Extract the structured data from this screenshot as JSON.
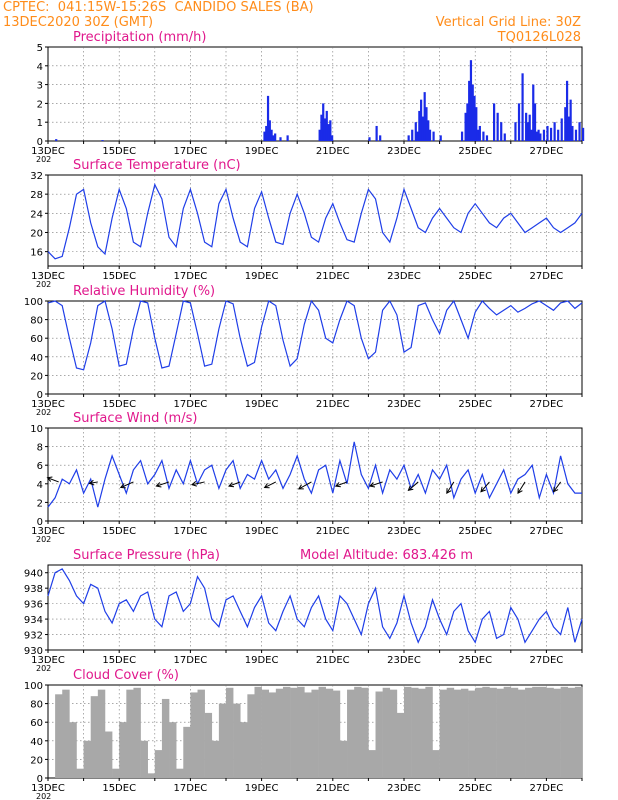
{
  "header": {
    "line1": "CPTEC:  041:15W-15:26S  CANDIDO SALES (BA)",
    "line2": "13DEC2020 30Z (GMT)",
    "grid_note": "Vertical Grid Line: 30Z",
    "run_id": "TQ0126L028"
  },
  "x_ticks": [
    "13DEC",
    "15DEC",
    "17DEC",
    "19DEC",
    "21DEC",
    "23DEC",
    "25DEC",
    "27DEC"
  ],
  "x_sub": "202",
  "chart_data": [
    {
      "id": "precip",
      "type": "bar",
      "title": "Precipitation (mm/h)",
      "ylim": [
        0,
        5
      ],
      "yticks": [
        0,
        1,
        2,
        3,
        4,
        5
      ],
      "x_range_days": [
        13,
        28
      ],
      "grid": true,
      "series": [
        {
          "x": [
            13.2,
            14.5,
            19.05,
            19.1,
            19.15,
            19.2,
            19.25,
            19.3,
            19.35,
            19.5,
            19.7,
            20.6,
            20.65,
            20.7,
            20.75,
            20.8,
            20.85,
            20.9,
            20.95,
            22.0,
            22.2,
            22.3,
            23.1,
            23.2,
            23.3,
            23.35,
            23.4,
            23.45,
            23.5,
            23.55,
            23.6,
            23.65,
            23.7,
            23.8,
            24.0,
            24.6,
            24.7,
            24.75,
            24.8,
            24.85,
            24.9,
            24.95,
            25.0,
            25.05,
            25.1,
            25.2,
            25.3,
            25.5,
            25.6,
            25.7,
            25.8,
            26.1,
            26.2,
            26.3,
            26.4,
            26.45,
            26.5,
            26.55,
            26.6,
            26.65,
            26.7,
            26.75,
            26.8,
            26.9,
            27.0,
            27.1,
            27.2,
            27.3,
            27.4,
            27.5,
            27.55,
            27.6,
            27.65,
            27.7,
            27.8,
            27.9,
            28.0
          ],
          "values": [
            0.1,
            0.05,
            0.5,
            0.8,
            2.4,
            1.1,
            0.6,
            0.3,
            0.4,
            0.2,
            0.3,
            0.6,
            1.4,
            2.0,
            1.2,
            1.6,
            0.9,
            1.1,
            0.3,
            0.2,
            0.8,
            0.3,
            0.3,
            0.6,
            1.0,
            0.5,
            1.6,
            2.2,
            1.3,
            2.6,
            1.8,
            1.1,
            0.6,
            0.5,
            0.3,
            0.5,
            1.5,
            2.0,
            3.2,
            4.3,
            3.0,
            2.4,
            1.8,
            0.6,
            0.8,
            0.5,
            0.3,
            2.0,
            1.5,
            1.0,
            0.4,
            1.0,
            2.0,
            3.6,
            1.5,
            1.0,
            1.4,
            0.6,
            3.0,
            2.0,
            0.5,
            0.6,
            0.4,
            0.6,
            0.8,
            0.7,
            1.0,
            0.6,
            1.2,
            1.8,
            3.2,
            1.3,
            2.2,
            0.8,
            0.6,
            1.0,
            0.7
          ]
        }
      ]
    },
    {
      "id": "temp",
      "type": "line",
      "title": "Surface Temperature (nC)",
      "ylim": [
        13,
        32
      ],
      "yticks": [
        16,
        20,
        24,
        28,
        32
      ],
      "x_range_days": [
        13,
        28
      ],
      "grid": true,
      "series": [
        {
          "x": [
            13.0,
            13.2,
            13.4,
            13.6,
            13.8,
            14.0,
            14.2,
            14.4,
            14.6,
            14.8,
            15.0,
            15.2,
            15.4,
            15.6,
            15.8,
            16.0,
            16.2,
            16.4,
            16.6,
            16.8,
            17.0,
            17.2,
            17.4,
            17.6,
            17.8,
            18.0,
            18.2,
            18.4,
            18.6,
            18.8,
            19.0,
            19.2,
            19.4,
            19.6,
            19.8,
            20.0,
            20.2,
            20.4,
            20.6,
            20.8,
            21.0,
            21.2,
            21.4,
            21.6,
            21.8,
            22.0,
            22.2,
            22.4,
            22.6,
            22.8,
            23.0,
            23.2,
            23.4,
            23.6,
            23.8,
            24.0,
            24.2,
            24.4,
            24.6,
            24.8,
            25.0,
            25.2,
            25.4,
            25.6,
            25.8,
            26.0,
            26.2,
            26.4,
            26.6,
            26.8,
            27.0,
            27.2,
            27.4,
            27.6,
            27.8,
            28.0
          ],
          "values": [
            16,
            14.5,
            15,
            21,
            28,
            29,
            22,
            17,
            15.5,
            23,
            29,
            25,
            18,
            17,
            24,
            30,
            27,
            19,
            17,
            25,
            29,
            24,
            18,
            17,
            26,
            29,
            23,
            18,
            17,
            25,
            28.5,
            23,
            18,
            17.5,
            24,
            28,
            24,
            19,
            18,
            23,
            26,
            22,
            18.5,
            18,
            24,
            29,
            27,
            20,
            18,
            23,
            29,
            25,
            21,
            20,
            23,
            25,
            23,
            21,
            20,
            24,
            26,
            24,
            22,
            21,
            23,
            24,
            22,
            20,
            21,
            22,
            23,
            21,
            20,
            21,
            22,
            24
          ]
        }
      ]
    },
    {
      "id": "rh",
      "type": "line",
      "title": "Relative Humidity (%)",
      "ylim": [
        0,
        100
      ],
      "yticks": [
        0,
        20,
        40,
        60,
        80,
        100
      ],
      "x_range_days": [
        13,
        28
      ],
      "grid": true,
      "series": [
        {
          "x": [
            13.0,
            13.2,
            13.4,
            13.6,
            13.8,
            14.0,
            14.2,
            14.4,
            14.6,
            14.8,
            15.0,
            15.2,
            15.4,
            15.6,
            15.8,
            16.0,
            16.2,
            16.4,
            16.6,
            16.8,
            17.0,
            17.2,
            17.4,
            17.6,
            17.8,
            18.0,
            18.2,
            18.4,
            18.6,
            18.8,
            19.0,
            19.2,
            19.4,
            19.6,
            19.8,
            20.0,
            20.2,
            20.4,
            20.6,
            20.8,
            21.0,
            21.2,
            21.4,
            21.6,
            21.8,
            22.0,
            22.2,
            22.4,
            22.6,
            22.8,
            23.0,
            23.2,
            23.4,
            23.6,
            23.8,
            24.0,
            24.2,
            24.4,
            24.6,
            24.8,
            25.0,
            25.2,
            25.4,
            25.6,
            25.8,
            26.0,
            26.2,
            26.4,
            26.6,
            26.8,
            27.0,
            27.2,
            27.4,
            27.6,
            27.8,
            28.0
          ],
          "values": [
            98,
            100,
            95,
            60,
            28,
            26,
            55,
            95,
            100,
            70,
            30,
            32,
            70,
            100,
            98,
            60,
            28,
            30,
            65,
            100,
            98,
            65,
            30,
            32,
            70,
            100,
            97,
            60,
            30,
            34,
            72,
            100,
            95,
            58,
            30,
            38,
            75,
            100,
            90,
            60,
            55,
            80,
            100,
            95,
            60,
            38,
            45,
            90,
            100,
            85,
            45,
            50,
            95,
            98,
            80,
            65,
            90,
            100,
            80,
            60,
            88,
            100,
            92,
            85,
            90,
            95,
            88,
            92,
            97,
            100,
            95,
            90,
            98,
            100,
            92,
            98
          ]
        }
      ]
    },
    {
      "id": "wind",
      "type": "line",
      "title": "Surface Wind (m/s)",
      "ylim": [
        0,
        10
      ],
      "yticks": [
        0,
        2,
        4,
        6,
        8,
        10
      ],
      "x_range_days": [
        13,
        28
      ],
      "grid": true,
      "series": [
        {
          "x": [
            13.0,
            13.2,
            13.4,
            13.6,
            13.8,
            14.0,
            14.2,
            14.4,
            14.6,
            14.8,
            15.0,
            15.2,
            15.4,
            15.6,
            15.8,
            16.0,
            16.2,
            16.4,
            16.6,
            16.8,
            17.0,
            17.2,
            17.4,
            17.6,
            17.8,
            18.0,
            18.2,
            18.4,
            18.6,
            18.8,
            19.0,
            19.2,
            19.4,
            19.6,
            19.8,
            20.0,
            20.2,
            20.4,
            20.6,
            20.8,
            21.0,
            21.2,
            21.4,
            21.6,
            21.8,
            22.0,
            22.2,
            22.4,
            22.6,
            22.8,
            23.0,
            23.2,
            23.4,
            23.6,
            23.8,
            24.0,
            24.2,
            24.4,
            24.6,
            24.8,
            25.0,
            25.2,
            25.4,
            25.6,
            25.8,
            26.0,
            26.2,
            26.4,
            26.6,
            26.8,
            27.0,
            27.2,
            27.4,
            27.6,
            27.8,
            28.0
          ],
          "values": [
            1.5,
            2.5,
            4.5,
            4.0,
            5.5,
            3.0,
            4.5,
            1.5,
            4.5,
            7.0,
            5.0,
            3.0,
            5.5,
            6.5,
            4.0,
            5.0,
            6.5,
            3.5,
            5.5,
            4.0,
            6.5,
            4.0,
            5.5,
            6.0,
            3.5,
            5.5,
            6.5,
            3.5,
            5.0,
            4.5,
            6.5,
            4.5,
            5.5,
            3.5,
            5.0,
            7.0,
            4.5,
            3.0,
            5.5,
            6.0,
            3.0,
            6.5,
            4.0,
            8.5,
            5.0,
            3.5,
            6.0,
            3.0,
            5.5,
            4.5,
            6.0,
            3.5,
            5.0,
            3.0,
            5.5,
            4.5,
            6.0,
            2.5,
            4.5,
            5.5,
            3.0,
            5.0,
            2.5,
            4.0,
            5.5,
            3.0,
            4.5,
            5.0,
            6.0,
            2.5,
            5.0,
            3.0,
            7.0,
            4.0,
            3.0,
            3.0
          ]
        },
        {
          "name": "",
          "x": [
            13.3,
            14.4,
            15.4,
            16.4,
            17.4,
            18.4,
            19.4,
            20.4,
            21.4,
            22.4,
            23.4,
            24.4,
            25.4,
            26.4,
            27.4
          ],
          "dir_dx": [
            -0.8,
            -0.6,
            -0.9,
            -0.9,
            -0.9,
            -0.8,
            -0.8,
            -0.9,
            -0.8,
            -0.9,
            -0.7,
            -0.5,
            -0.6,
            -0.5,
            -0.5
          ],
          "dir_dy": [
            -0.3,
            0.1,
            0.4,
            0.3,
            0.2,
            0.3,
            0.4,
            0.5,
            0.3,
            0.3,
            0.6,
            0.8,
            0.7,
            0.8,
            0.7
          ]
        }
      ]
    },
    {
      "id": "pres",
      "type": "line",
      "title": "Surface Pressure (hPa)",
      "subtitle": "Model Altitude: 683.426 m",
      "ylim": [
        930,
        941
      ],
      "yticks": [
        930,
        932,
        934,
        936,
        938,
        940
      ],
      "x_range_days": [
        13,
        28
      ],
      "grid": true,
      "series": [
        {
          "x": [
            13.0,
            13.2,
            13.4,
            13.6,
            13.8,
            14.0,
            14.2,
            14.4,
            14.6,
            14.8,
            15.0,
            15.2,
            15.4,
            15.6,
            15.8,
            16.0,
            16.2,
            16.4,
            16.6,
            16.8,
            17.0,
            17.2,
            17.4,
            17.6,
            17.8,
            18.0,
            18.2,
            18.4,
            18.6,
            18.8,
            19.0,
            19.2,
            19.4,
            19.6,
            19.8,
            20.0,
            20.2,
            20.4,
            20.6,
            20.8,
            21.0,
            21.2,
            21.4,
            21.6,
            21.8,
            22.0,
            22.2,
            22.4,
            22.6,
            22.8,
            23.0,
            23.2,
            23.4,
            23.6,
            23.8,
            24.0,
            24.2,
            24.4,
            24.6,
            24.8,
            25.0,
            25.2,
            25.4,
            25.6,
            25.8,
            26.0,
            26.2,
            26.4,
            26.6,
            26.8,
            27.0,
            27.2,
            27.4,
            27.6,
            27.8,
            28.0
          ],
          "values": [
            937,
            940,
            940.5,
            939,
            937,
            936,
            938.5,
            938,
            935,
            933.5,
            936,
            936.5,
            935,
            937,
            937.5,
            934,
            933,
            937,
            937.5,
            935,
            936,
            939.5,
            938,
            934,
            933,
            936.5,
            937,
            935,
            933,
            935.5,
            937,
            933.5,
            932.5,
            935,
            937,
            934,
            933,
            935.5,
            937,
            934,
            932.5,
            937,
            936,
            934,
            932,
            936,
            938,
            933,
            931.5,
            933.5,
            937,
            933.5,
            931,
            933,
            936.5,
            934,
            932,
            935,
            936,
            932.5,
            931,
            934,
            935,
            931.5,
            932,
            935.5,
            934,
            931,
            932.5,
            934,
            935,
            933,
            932,
            935.5,
            931,
            934
          ]
        }
      ]
    },
    {
      "id": "cloud",
      "type": "area",
      "title": "Cloud Cover (%)",
      "ylim": [
        0,
        100
      ],
      "yticks": [
        0,
        20,
        40,
        60,
        80,
        100
      ],
      "x_range_days": [
        13,
        28
      ],
      "grid": true,
      "series": [
        {
          "x": [
            13.0,
            13.2,
            13.4,
            13.6,
            13.8,
            14.0,
            14.2,
            14.4,
            14.6,
            14.8,
            15.0,
            15.2,
            15.4,
            15.6,
            15.8,
            16.0,
            16.2,
            16.4,
            16.6,
            16.8,
            17.0,
            17.2,
            17.4,
            17.6,
            17.8,
            18.0,
            18.2,
            18.4,
            18.6,
            18.8,
            19.0,
            19.2,
            19.4,
            19.6,
            19.8,
            20.0,
            20.2,
            20.4,
            20.6,
            20.8,
            21.0,
            21.2,
            21.4,
            21.6,
            21.8,
            22.0,
            22.2,
            22.4,
            22.6,
            22.8,
            23.0,
            23.2,
            23.4,
            23.6,
            23.8,
            24.0,
            24.2,
            24.4,
            24.6,
            24.8,
            25.0,
            25.2,
            25.4,
            25.6,
            25.8,
            26.0,
            26.2,
            26.4,
            26.6,
            26.8,
            27.0,
            27.2,
            27.4,
            27.6,
            27.8,
            28.0
          ],
          "values": [
            0,
            90,
            95,
            60,
            10,
            40,
            88,
            95,
            50,
            10,
            60,
            95,
            97,
            40,
            5,
            30,
            85,
            60,
            10,
            55,
            92,
            95,
            70,
            40,
            80,
            97,
            80,
            60,
            90,
            98,
            95,
            92,
            96,
            98,
            97,
            98,
            92,
            95,
            98,
            96,
            94,
            40,
            95,
            98,
            97,
            30,
            93,
            97,
            95,
            70,
            98,
            97,
            96,
            98,
            30,
            95,
            97,
            95,
            96,
            94,
            97,
            98,
            97,
            96,
            98,
            97,
            95,
            97,
            98,
            98,
            97,
            96,
            98,
            97,
            98,
            98
          ]
        }
      ]
    }
  ]
}
